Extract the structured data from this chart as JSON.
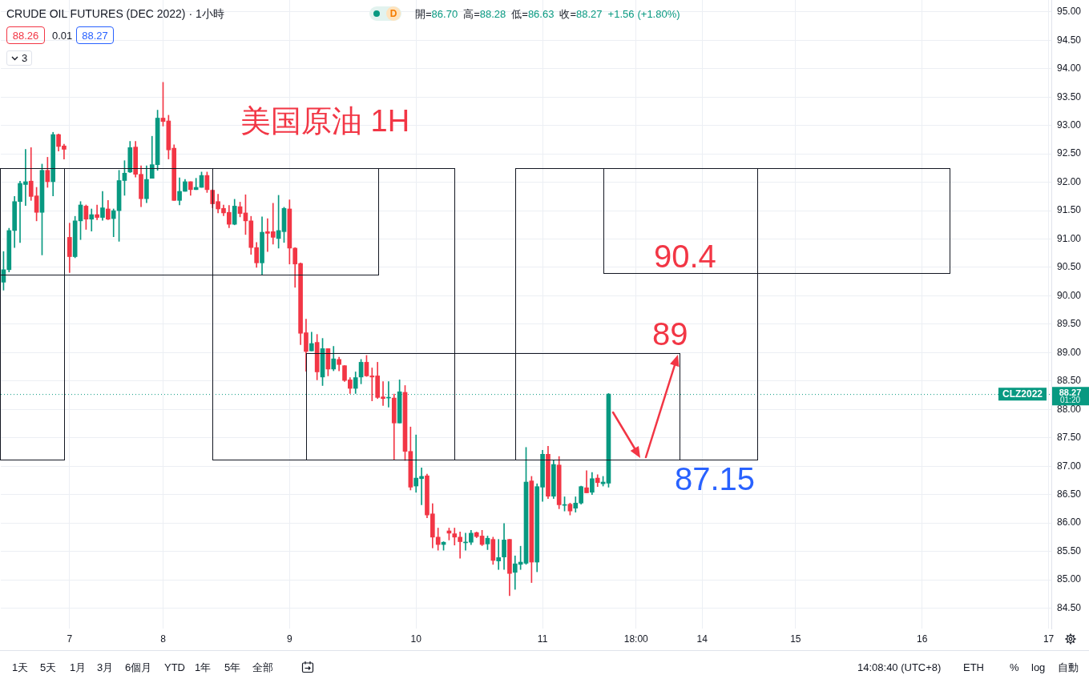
{
  "chart_data": {
    "type": "candlestick",
    "title": "CRUDE OIL FUTURES (DEC 2022) · 1小時",
    "categories": [
      null,
      null,
      null,
      null,
      null,
      null,
      null,
      null,
      null,
      null,
      null,
      null,
      "7",
      null,
      null,
      null,
      null,
      null,
      null,
      null,
      null,
      null,
      null,
      null,
      null,
      null,
      null,
      null,
      null,
      "8",
      null,
      null,
      null,
      null,
      null,
      null,
      null,
      null,
      null,
      null,
      null,
      null,
      null,
      null,
      null,
      null,
      null,
      null,
      null,
      null,
      null,
      null,
      "9",
      null,
      null,
      null,
      null,
      null,
      null,
      null,
      null,
      null,
      null,
      null,
      null,
      null,
      null,
      null,
      null,
      null,
      null,
      null,
      null,
      null,
      null,
      "10",
      null,
      null,
      null,
      null,
      null,
      null,
      null,
      null,
      null,
      null,
      null,
      null,
      null,
      null,
      null,
      null,
      null,
      null,
      null,
      null,
      null,
      null,
      "11",
      null,
      null,
      null,
      null,
      null,
      null,
      null,
      null,
      null,
      null,
      null,
      null,
      null,
      null,
      null,
      null,
      "18:00",
      null,
      null,
      null,
      null,
      null,
      null,
      null,
      null,
      null,
      null,
      null,
      "14",
      null,
      null,
      null,
      null,
      null,
      null,
      null,
      null,
      null,
      null,
      null,
      null,
      null,
      null,
      null,
      null,
      "15",
      null,
      null,
      null,
      null,
      null,
      null,
      null,
      null,
      null,
      null,
      null,
      null,
      null,
      null,
      null,
      null,
      null,
      null,
      null,
      null,
      null,
      null,
      "16",
      null,
      null,
      null,
      null,
      null,
      null,
      null,
      null,
      null,
      null,
      null,
      null,
      null,
      null,
      null,
      null,
      null,
      null,
      null,
      null,
      null,
      null,
      "17"
    ],
    "ohlc": [
      [
        90.24,
        90.78,
        90.1,
        90.46
      ],
      [
        90.46,
        91.19,
        90.42,
        91.15
      ],
      [
        91.15,
        91.75,
        90.85,
        91.66
      ],
      [
        91.66,
        92.02,
        90.94,
        91.98
      ],
      [
        91.96,
        92.58,
        91.59,
        92.01
      ],
      [
        92.02,
        92.61,
        91.68,
        91.75
      ],
      [
        91.76,
        91.91,
        91.32,
        91.47
      ],
      [
        91.47,
        92.32,
        90.72,
        92.21
      ],
      [
        92.21,
        92.44,
        91.91,
        92.01
      ],
      [
        92.01,
        92.88,
        91.76,
        92.84
      ],
      [
        92.84,
        92.85,
        92.55,
        92.63
      ],
      [
        92.64,
        92.67,
        92.41,
        92.58
      ],
      [
        91.03,
        91.28,
        90.41,
        90.69
      ],
      [
        90.69,
        91.4,
        90.67,
        91.32
      ],
      [
        91.32,
        91.66,
        90.99,
        91.6
      ],
      [
        91.58,
        91.6,
        91.17,
        91.35
      ],
      [
        91.35,
        91.53,
        91.14,
        91.43
      ],
      [
        91.43,
        91.6,
        91.34,
        91.38
      ],
      [
        91.38,
        91.84,
        91.33,
        91.55
      ],
      [
        91.53,
        91.68,
        91.34,
        91.35
      ],
      [
        91.36,
        91.53,
        91.04,
        91.5
      ],
      [
        91.5,
        92.21,
        90.96,
        92.03
      ],
      [
        92.03,
        92.38,
        91.77,
        92.16
      ],
      [
        92.18,
        92.72,
        92.17,
        92.61
      ],
      [
        92.62,
        92.72,
        92.09,
        92.14
      ],
      [
        92.14,
        92.29,
        91.57,
        91.71
      ],
      [
        91.71,
        92.29,
        91.64,
        92.05
      ],
      [
        92.07,
        92.81,
        92.07,
        92.31
      ],
      [
        92.31,
        93.27,
        92.21,
        93.13
      ],
      [
        93.13,
        93.76,
        92.99,
        93.07
      ],
      [
        93.08,
        93.18,
        92.41,
        92.57
      ],
      [
        92.6,
        92.66,
        91.68,
        91.68
      ],
      [
        91.68,
        92.08,
        91.6,
        91.84
      ],
      [
        91.84,
        92.05,
        91.84,
        92.01
      ],
      [
        92.01,
        92.01,
        91.77,
        91.87
      ],
      [
        91.87,
        92.07,
        91.87,
        91.91
      ],
      [
        91.91,
        92.18,
        91.91,
        92.12
      ],
      [
        92.12,
        92.18,
        91.82,
        91.87
      ],
      [
        91.86,
        91.87,
        91.55,
        91.62
      ],
      [
        91.66,
        91.79,
        91.46,
        91.53
      ],
      [
        91.54,
        91.6,
        91.41,
        91.46
      ],
      [
        91.47,
        91.59,
        91.2,
        91.26
      ],
      [
        91.26,
        91.7,
        91.25,
        91.58
      ],
      [
        91.57,
        91.65,
        91.39,
        91.45
      ],
      [
        91.46,
        91.78,
        91.08,
        91.32
      ],
      [
        91.32,
        91.4,
        90.73,
        90.85
      ],
      [
        90.85,
        90.94,
        90.5,
        90.58
      ],
      [
        90.58,
        91.39,
        90.37,
        91.12
      ],
      [
        91.13,
        91.36,
        90.78,
        91.1
      ],
      [
        91.13,
        91.63,
        90.91,
        91.03
      ],
      [
        91.01,
        91.77,
        90.84,
        91.15
      ],
      [
        91.13,
        91.56,
        90.94,
        91.54
      ],
      [
        91.53,
        91.69,
        90.56,
        90.84
      ],
      [
        90.84,
        90.85,
        90.15,
        90.56
      ],
      [
        90.57,
        90.58,
        89.14,
        89.34
      ],
      [
        89.35,
        89.59,
        88.67,
        89.02
      ],
      [
        89.03,
        89.36,
        89.03,
        89.16
      ],
      [
        89.18,
        89.32,
        88.52,
        88.66
      ],
      [
        88.57,
        89.25,
        88.42,
        89.07
      ],
      [
        89.07,
        89.07,
        88.59,
        88.71
      ],
      [
        88.71,
        89.11,
        88.68,
        88.89
      ],
      [
        88.88,
        88.92,
        88.68,
        88.79
      ],
      [
        88.77,
        88.77,
        88.49,
        88.51
      ],
      [
        88.52,
        88.56,
        88.28,
        88.37
      ],
      [
        88.37,
        88.66,
        88.28,
        88.56
      ],
      [
        88.57,
        88.88,
        88.45,
        88.83
      ],
      [
        88.83,
        88.95,
        88.58,
        88.59
      ],
      [
        88.59,
        88.73,
        88.15,
        88.57
      ],
      [
        88.59,
        88.83,
        88.19,
        88.21
      ],
      [
        88.22,
        88.49,
        88.07,
        88.19
      ],
      [
        88.2,
        88.49,
        88.04,
        88.21
      ],
      [
        88.2,
        88.27,
        87.12,
        87.76
      ],
      [
        87.76,
        88.52,
        87.76,
        88.31
      ],
      [
        88.3,
        88.42,
        87.1,
        87.26
      ],
      [
        87.26,
        87.69,
        86.58,
        86.63
      ],
      [
        86.65,
        87.55,
        86.54,
        86.79
      ],
      [
        86.78,
        86.97,
        86.32,
        86.82
      ],
      [
        86.83,
        86.86,
        86.09,
        86.14
      ],
      [
        86.16,
        86.34,
        85.56,
        85.75
      ],
      [
        85.75,
        85.91,
        85.52,
        85.62
      ],
      [
        85.62,
        85.67,
        85.52,
        85.66
      ],
      [
        85.86,
        85.91,
        85.7,
        85.82
      ],
      [
        85.81,
        85.91,
        85.61,
        85.75
      ],
      [
        85.75,
        85.84,
        85.38,
        85.67
      ],
      [
        85.65,
        85.82,
        85.52,
        85.66
      ],
      [
        85.66,
        85.87,
        85.62,
        85.82
      ],
      [
        85.83,
        85.84,
        85.74,
        85.76
      ],
      [
        85.77,
        85.87,
        85.6,
        85.62
      ],
      [
        85.63,
        85.77,
        85.53,
        85.73
      ],
      [
        85.71,
        85.75,
        85.27,
        85.34
      ],
      [
        85.33,
        85.71,
        85.18,
        85.39
      ],
      [
        85.4,
        85.99,
        85.18,
        85.7
      ],
      [
        85.71,
        85.71,
        84.72,
        85.11
      ],
      [
        85.13,
        85.42,
        84.83,
        85.28
      ],
      [
        85.27,
        85.59,
        85.18,
        85.31
      ],
      [
        85.29,
        87.33,
        85.27,
        86.72
      ],
      [
        86.74,
        86.82,
        84.95,
        85.31
      ],
      [
        85.31,
        86.69,
        85.14,
        86.64
      ],
      [
        86.63,
        87.28,
        86.38,
        87.21
      ],
      [
        87.21,
        87.35,
        86.43,
        86.47
      ],
      [
        86.47,
        87.1,
        86.43,
        87.03
      ],
      [
        87.02,
        87.17,
        86.25,
        86.32
      ],
      [
        86.31,
        86.46,
        86.21,
        86.32
      ],
      [
        86.33,
        86.35,
        86.14,
        86.21
      ],
      [
        86.26,
        86.46,
        86.19,
        86.35
      ],
      [
        86.35,
        86.65,
        86.33,
        86.64
      ],
      [
        86.62,
        86.92,
        86.53,
        86.53
      ],
      [
        86.54,
        86.89,
        86.5,
        86.78
      ],
      [
        86.79,
        86.85,
        86.64,
        86.71
      ],
      [
        86.69,
        86.82,
        86.65,
        86.72
      ],
      [
        86.7,
        88.28,
        86.63,
        88.27
      ],
      null,
      null,
      null,
      null,
      null,
      null,
      null,
      null,
      null,
      null,
      null,
      null,
      null,
      null,
      null,
      null,
      null,
      null,
      null,
      null,
      null,
      null,
      null,
      null,
      null,
      null,
      null,
      null,
      null,
      null,
      null,
      null,
      null,
      null,
      null,
      null,
      null,
      null,
      null,
      null,
      null,
      null,
      null,
      null,
      null,
      null,
      null,
      null,
      null,
      null,
      null,
      null,
      null,
      null,
      null,
      null,
      null,
      null,
      null,
      null,
      null,
      null,
      null,
      null,
      null,
      null,
      null,
      null,
      null,
      null,
      null,
      null,
      null,
      null,
      null,
      null,
      null,
      null,
      null,
      null
    ],
    "colors": [
      "#089981",
      "#089981",
      "#089981",
      "#089981",
      "#089981",
      "#f23645",
      "#f23645",
      "#089981",
      "#f23645",
      "#089981",
      "#f23645",
      "#f23645",
      "#f23645",
      "#089981",
      "#089981",
      "#f23645",
      "#089981",
      "#f23645",
      "#089981",
      "#f23645",
      "#089981",
      "#089981",
      "#089981",
      "#089981",
      "#f23645",
      "#f23645",
      "#089981",
      "#089981",
      "#089981",
      "#f23645",
      "#f23645",
      "#f23645",
      "#089981",
      "#089981",
      "#f23645",
      "#089981",
      "#089981",
      "#f23645",
      "#f23645",
      "#f23645",
      "#f23645",
      "#f23645",
      "#089981",
      "#f23645",
      "#f23645",
      "#f23645",
      "#f23645",
      "#089981",
      "#f23645",
      "#f23645",
      "#089981",
      "#089981",
      "#f23645",
      "#f23645",
      "#f23645",
      "#f23645",
      "#089981",
      "#f23645",
      "#089981",
      "#f23645",
      "#089981",
      "#f23645",
      "#f23645",
      "#f23645",
      "#089981",
      "#089981",
      "#f23645",
      "#f23645",
      "#f23645",
      "#f23645",
      "#089981",
      "#f23645",
      "#089981",
      "#f23645",
      "#f23645",
      "#089981",
      "#089981",
      "#f23645",
      "#f23645",
      "#f23645",
      "#089981",
      "#f23645",
      "#f23645",
      "#f23645",
      "#089981",
      "#089981",
      "#f23645",
      "#f23645",
      "#089981",
      "#f23645",
      "#089981",
      "#089981",
      "#f23645",
      "#089981",
      "#089981",
      "#089981",
      "#f23645",
      "#089981",
      "#089981",
      "#f23645",
      "#089981",
      "#f23645",
      "#089981",
      "#f23645",
      "#089981",
      "#089981",
      "#f23645",
      "#089981",
      "#f23645",
      "#089981",
      "#089981",
      null,
      null,
      null,
      null,
      null,
      null,
      null,
      null,
      null,
      null,
      null,
      null,
      null,
      null,
      null,
      null,
      null,
      null,
      null,
      null,
      null,
      null,
      null,
      null,
      null,
      null,
      null,
      null,
      null,
      null,
      null,
      null,
      null,
      null,
      null,
      null,
      null,
      null,
      null,
      null,
      null,
      null,
      null,
      null,
      null,
      null,
      null,
      null,
      null,
      null,
      null,
      null,
      null,
      null,
      null,
      null,
      null,
      null,
      null,
      null,
      null,
      null,
      null,
      null,
      null,
      null,
      null,
      null,
      null,
      null,
      null,
      null,
      null,
      null,
      null,
      null,
      null,
      null,
      null,
      null
    ],
    "ylim": [
      84.14,
      95.21
    ],
    "yticks": [
      {
        "value": 84.5,
        "label": "84.50"
      },
      {
        "value": 85,
        "label": "85.00"
      },
      {
        "value": 85.5,
        "label": "85.50"
      },
      {
        "value": 86,
        "label": "86.00"
      },
      {
        "value": 86.5,
        "label": "86.50"
      },
      {
        "value": 87,
        "label": "87.00"
      },
      {
        "value": 87.5,
        "label": "87.50"
      },
      {
        "value": 88,
        "label": "88.00"
      },
      {
        "value": 88.5,
        "label": "88.50"
      },
      {
        "value": 89,
        "label": "89.00"
      },
      {
        "value": 89.5,
        "label": "89.50"
      },
      {
        "value": 90,
        "label": "90.00"
      },
      {
        "value": 90.5,
        "label": "90.50"
      },
      {
        "value": 91,
        "label": "91.00"
      },
      {
        "value": 91.5,
        "label": "91.50"
      },
      {
        "value": 92,
        "label": "92.00"
      },
      {
        "value": 92.5,
        "label": "92.50"
      },
      {
        "value": 93,
        "label": "93.00"
      },
      {
        "value": 93.5,
        "label": "93.50"
      },
      {
        "value": 94,
        "label": "94.00"
      },
      {
        "value": 94.5,
        "label": "94.50"
      },
      {
        "value": 95,
        "label": "95.00"
      }
    ],
    "grid": true,
    "ref_lines": [
      {
        "axis": "y",
        "value": 88.27,
        "label": "CLZ2022",
        "color": "#089981",
        "line_style": "dotted"
      }
    ],
    "annotations": [
      "88.26",
      "0.01",
      "88.27",
      "3",
      "D",
      "開=",
      "86.70",
      "高=",
      "88.28",
      "低=",
      "86.63",
      "收=",
      "88.27",
      "+1.56",
      "(+1.80%)",
      "美国原油 1H",
      "90.4",
      "89",
      "87.15",
      "88.27",
      "01:20",
      "1天",
      "5天",
      "1月",
      "3月",
      "6個月",
      "YTD",
      "1年",
      "5年",
      "全部",
      "14:08:40 (UTC+8)",
      "ETH",
      "%",
      "log",
      "自動"
    ]
  }
}
